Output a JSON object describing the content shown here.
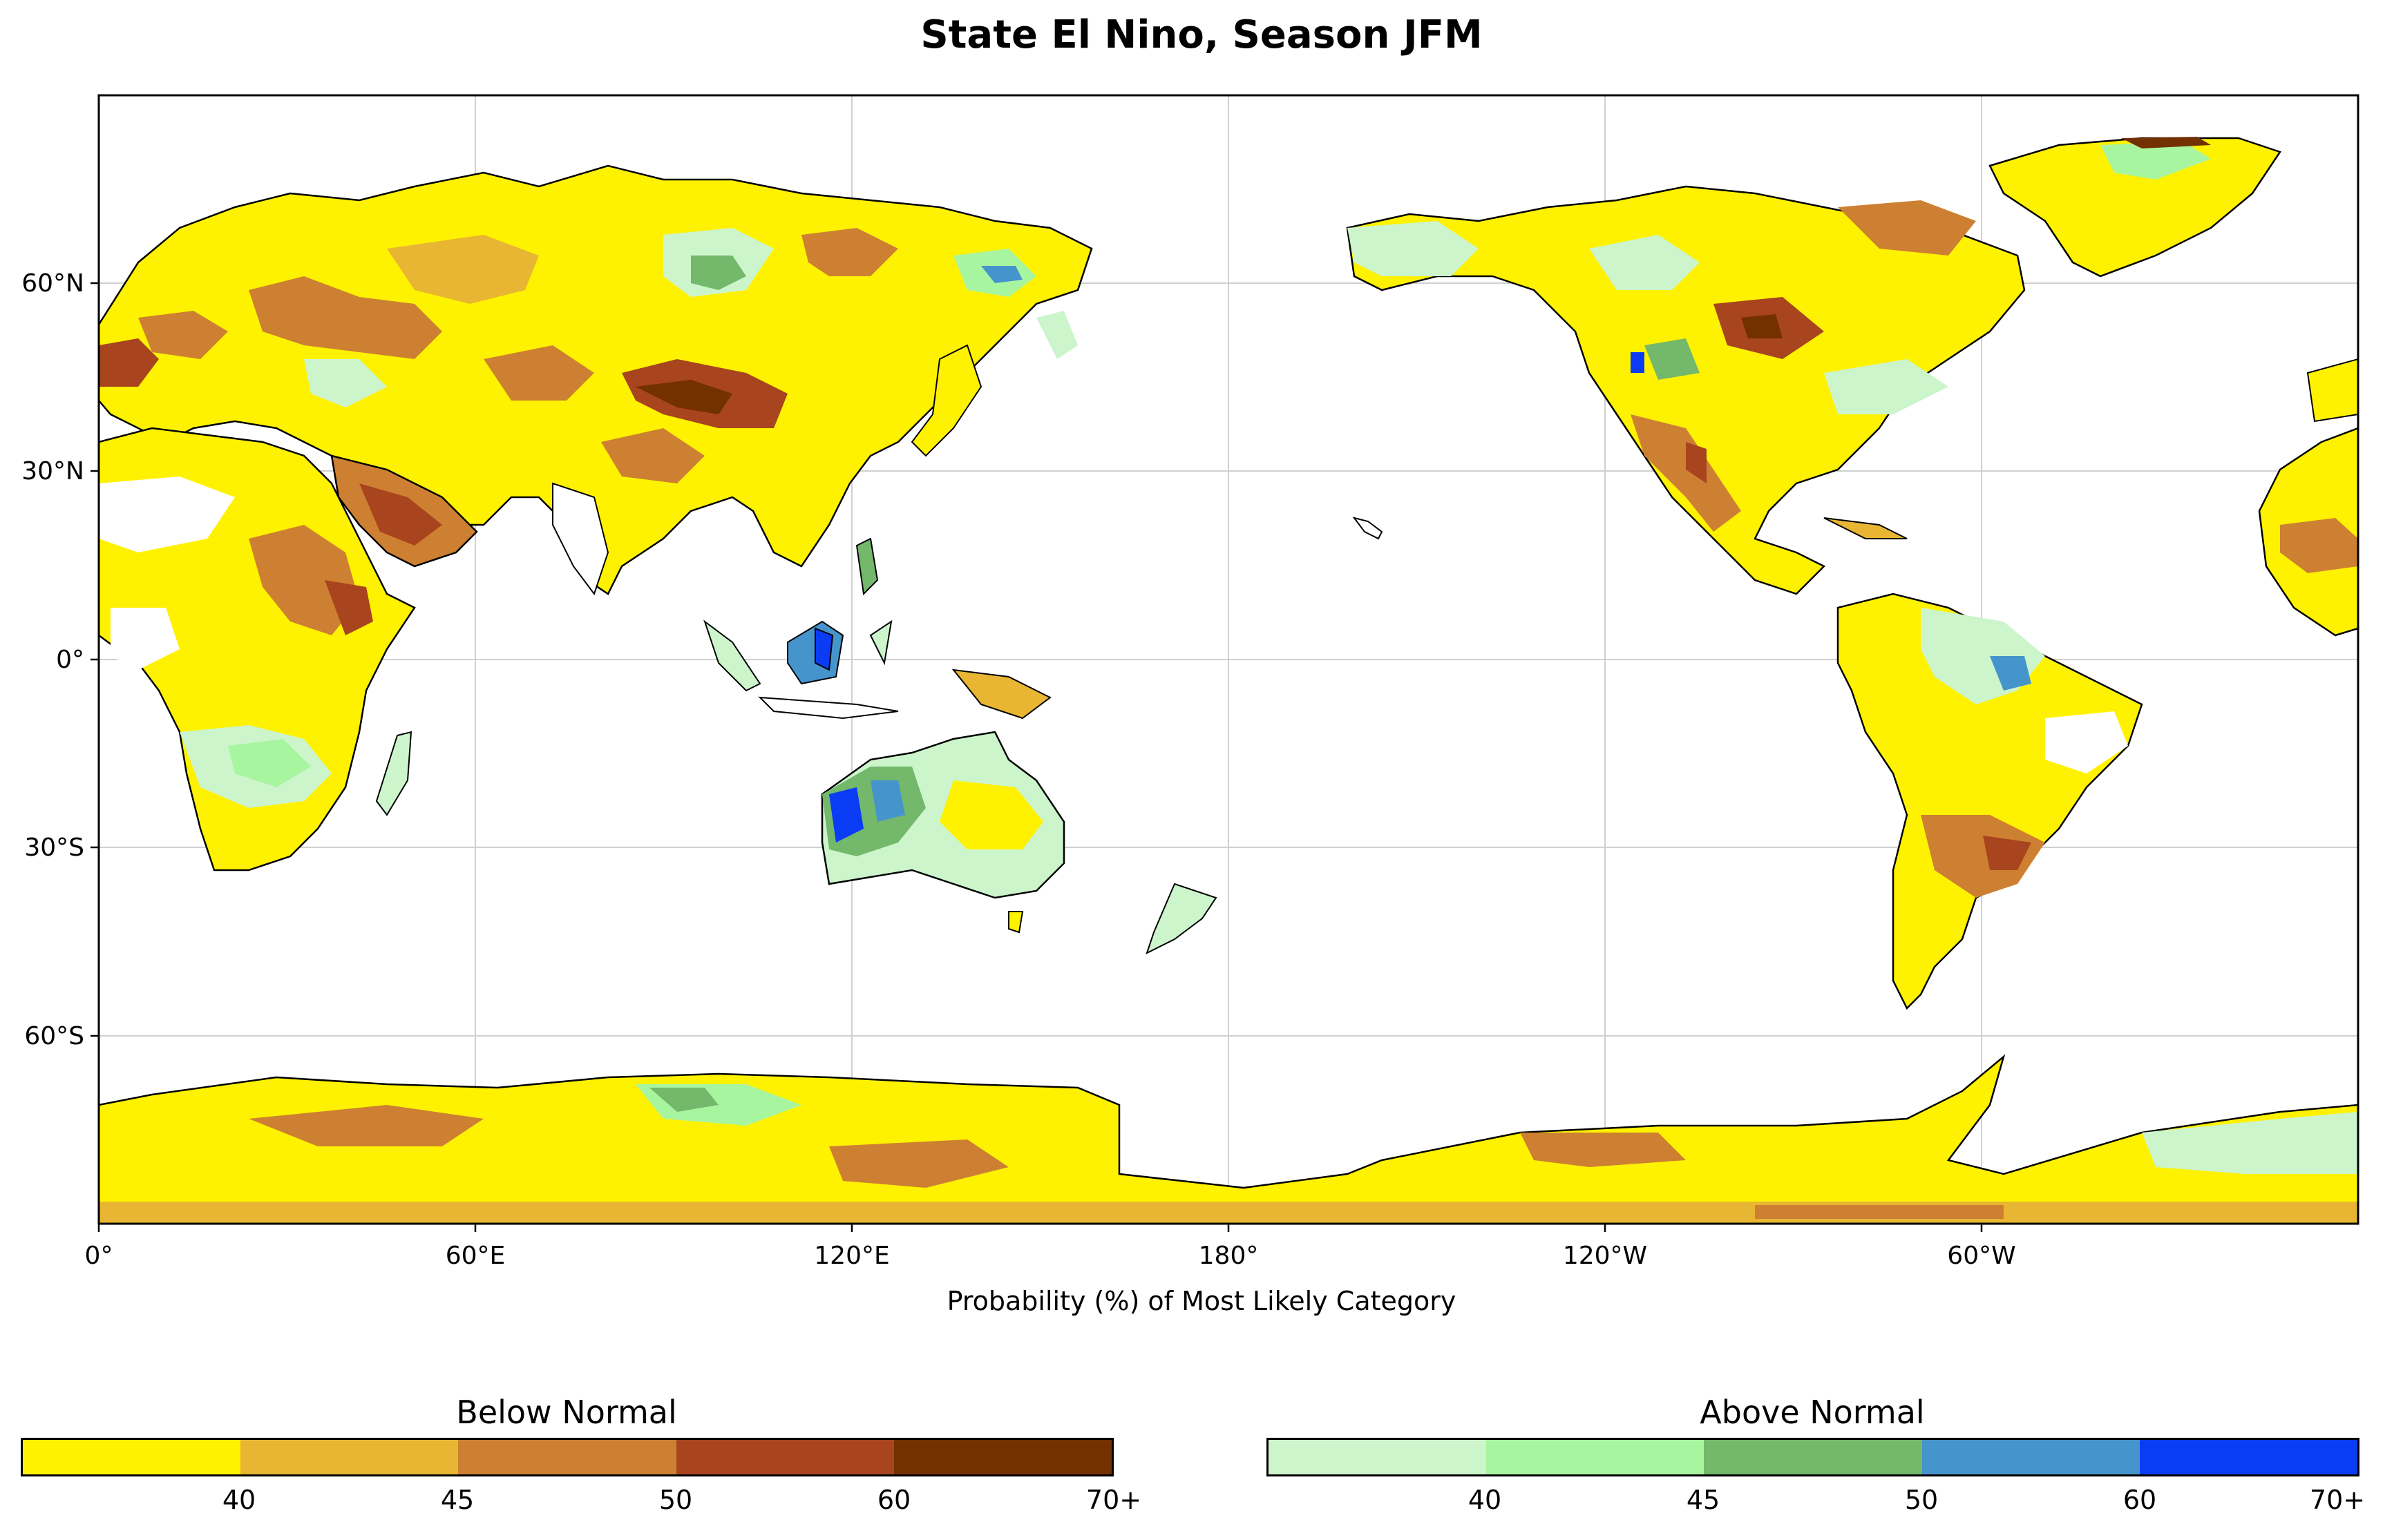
{
  "title": "State El Nino, Season JFM",
  "xlabel": "Probability (%) of Most Likely Category",
  "x_ticks": [
    "0°",
    "60°E",
    "120°E",
    "180°",
    "120°W",
    "60°W"
  ],
  "y_ticks": [
    "60°N",
    "30°N",
    "0°",
    "30°S",
    "60°S"
  ],
  "colorbars": {
    "below": {
      "title": "Below Normal",
      "colors": [
        "#fff200",
        "#e8b632",
        "#cd8032",
        "#a8441e",
        "#733000"
      ],
      "tick_labels": [
        "40",
        "45",
        "50",
        "60",
        "70+"
      ]
    },
    "above": {
      "title": "Above Normal",
      "colors": [
        "#ccf5cc",
        "#a8f5a0",
        "#73b86b",
        "#4694cc",
        "#0a3cf5"
      ],
      "tick_labels": [
        "40",
        "45",
        "50",
        "60",
        "70+"
      ]
    }
  },
  "colors": {
    "land_outline": "#000000",
    "grid": "#d0d0d0",
    "ocean": "#ffffff"
  }
}
